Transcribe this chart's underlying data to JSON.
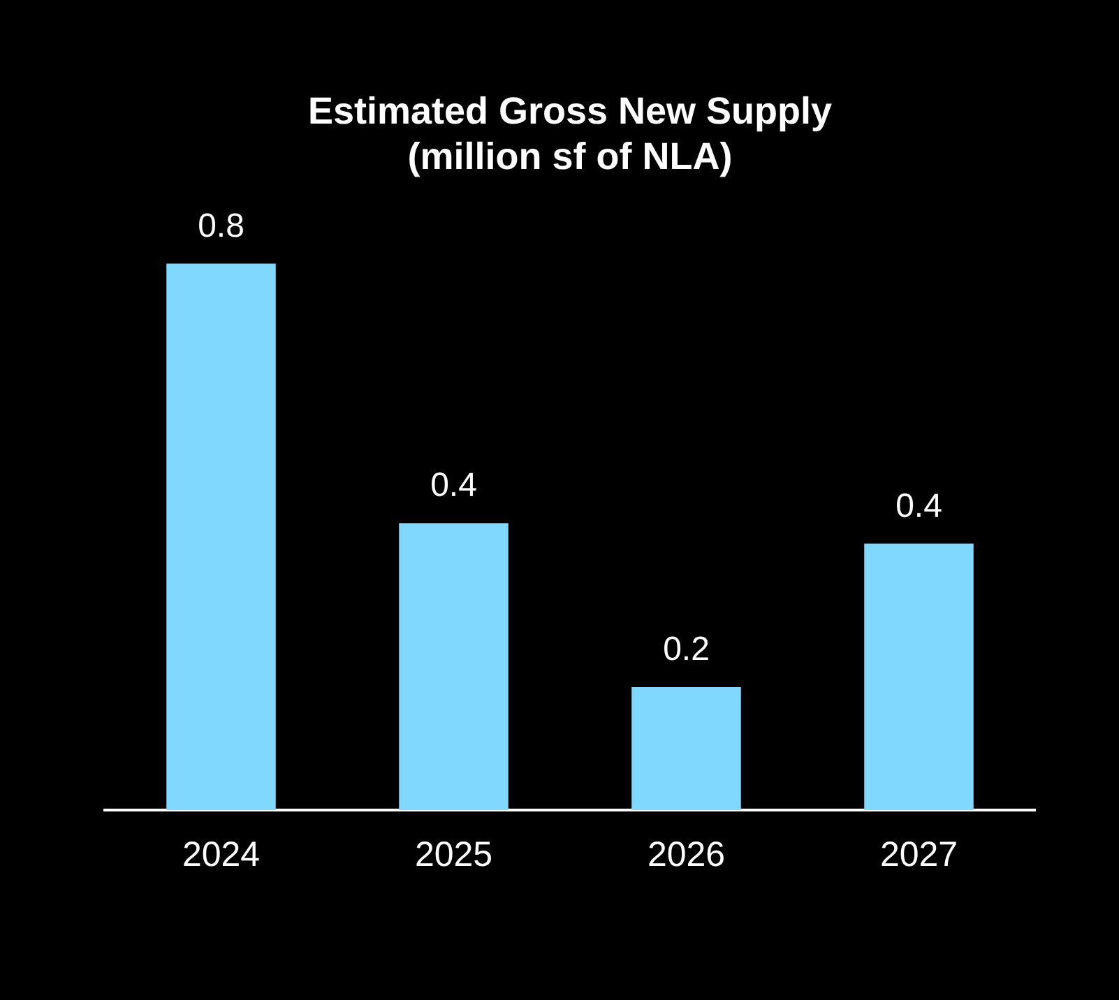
{
  "chart_data": {
    "type": "bar",
    "title": "Estimated Gross New Supply\n(million sf of NLA)",
    "categories": [
      "2024",
      "2025",
      "2026",
      "2027"
    ],
    "values": [
      0.8,
      0.42,
      0.18,
      0.39
    ],
    "value_labels": [
      "0.8",
      "0.4",
      "0.2",
      "0.4"
    ],
    "color": "#80d8ff",
    "tick_labels": "x",
    "grid": false,
    "legend": false
  }
}
